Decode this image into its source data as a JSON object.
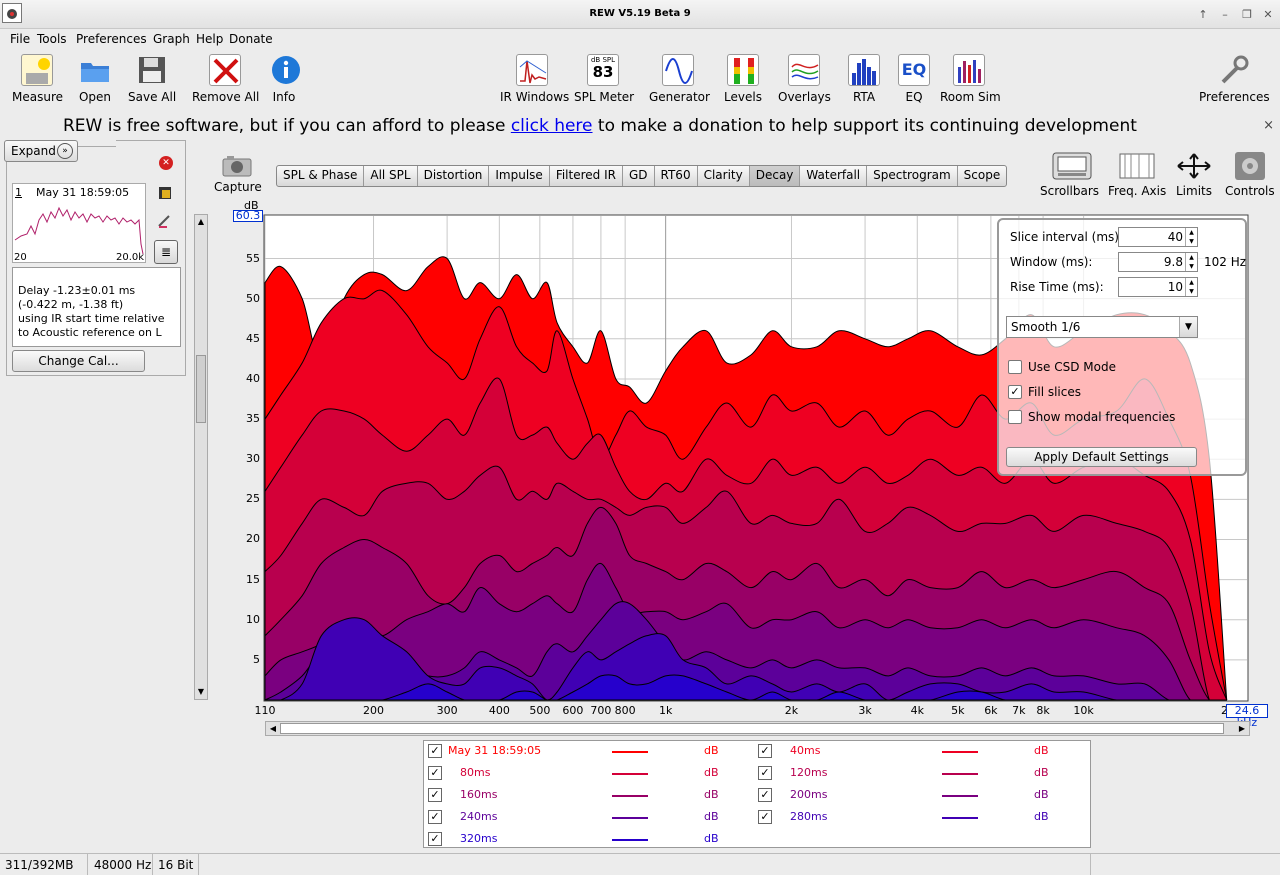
{
  "window": {
    "title": "REW V5.19 Beta 9",
    "controls": [
      "↑",
      "–",
      "❐",
      "✕"
    ]
  },
  "menu": [
    "File",
    "Tools",
    "Preferences",
    "Graph",
    "Help",
    "Donate"
  ],
  "toolbar": {
    "left": [
      {
        "label": "Measure",
        "icon": "measure-icon"
      },
      {
        "label": "Open",
        "icon": "folder-icon"
      },
      {
        "label": "Save All",
        "icon": "save-icon"
      },
      {
        "label": "Remove All",
        "icon": "remove-all-icon"
      },
      {
        "label": "Info",
        "icon": "info-icon"
      }
    ],
    "center": [
      {
        "label": "IR Windows",
        "icon": "ir-windows-icon"
      },
      {
        "label": "SPL Meter",
        "icon": "spl-meter-icon"
      },
      {
        "label": "Generator",
        "icon": "generator-icon"
      },
      {
        "label": "Levels",
        "icon": "levels-icon"
      },
      {
        "label": "Overlays",
        "icon": "overlays-icon"
      },
      {
        "label": "RTA",
        "icon": "rta-icon"
      },
      {
        "label": "EQ",
        "icon": "eq-icon"
      },
      {
        "label": "Room Sim",
        "icon": "room-sim-icon"
      }
    ],
    "spl_badge": {
      "unit": "dB SPL",
      "value": "83"
    },
    "eq_badge": "EQ",
    "right": {
      "label": "Preferences",
      "icon": "preferences-icon"
    }
  },
  "banner": {
    "before": "REW is free software, but if you can afford to please ",
    "link": "click here",
    "after": " to make a donation to help support its continuing development",
    "close": "×"
  },
  "left_panel": {
    "expand_label": "Expand",
    "expand_icon": "»",
    "measurement": {
      "number": "1",
      "date": "May 31 18:59:05",
      "freq_low": "20",
      "freq_high": "20.0k",
      "info_lines": [
        "Delay -1.23±0.01 ms",
        "(-0.422 m, -1.38 ft)",
        "using IR start time relative",
        "to Acoustic reference on  L"
      ]
    },
    "change_cal_label": "Change Cal..."
  },
  "capture_label": "Capture",
  "graph_tabs": [
    "SPL & Phase",
    "All SPL",
    "Distortion",
    "Impulse",
    "Filtered IR",
    "GD",
    "RT60",
    "Clarity",
    "Decay",
    "Waterfall",
    "Spectrogram",
    "Scope"
  ],
  "selected_tab": "Decay",
  "graph_tools": [
    {
      "label": "Scrollbars",
      "icon": "scrollbars-icon"
    },
    {
      "label": "Freq. Axis",
      "icon": "freq-axis-icon"
    },
    {
      "label": "Limits",
      "icon": "limits-icon"
    },
    {
      "label": "Controls",
      "icon": "controls-gear-icon"
    }
  ],
  "controls_panel": {
    "slice_interval_label": "Slice interval (ms):",
    "slice_interval_value": "40",
    "window_label": "Window (ms):",
    "window_value": "9.8",
    "window_hz": "102 Hz",
    "rise_time_label": "Rise Time (ms):",
    "rise_time_value": "10",
    "smoothing": "Smooth 1/6",
    "use_csd_label": "Use CSD Mode",
    "use_csd": false,
    "fill_slices_label": "Fill slices",
    "fill_slices": true,
    "show_modal_label": "Show modal frequencies",
    "show_modal": false,
    "apply_default_label": "Apply Default Settings"
  },
  "chart_data": {
    "type": "area",
    "ylabel": "dB",
    "ylim": [
      0,
      60.3
    ],
    "y_top_value": "60.3",
    "y_ticks": [
      5,
      10,
      15,
      20,
      25,
      30,
      35,
      40,
      45,
      50,
      55
    ],
    "xlim": [
      110,
      24600
    ],
    "x_scale": "log",
    "x_ticks": [
      {
        "value": 110,
        "label": "110"
      },
      {
        "value": 200,
        "label": "200"
      },
      {
        "value": 300,
        "label": "300"
      },
      {
        "value": 400,
        "label": "400"
      },
      {
        "value": 500,
        "label": "500"
      },
      {
        "value": 600,
        "label": "600"
      },
      {
        "value": 700,
        "label": "700"
      },
      {
        "value": 800,
        "label": "800"
      },
      {
        "value": 1000,
        "label": "1k"
      },
      {
        "value": 2000,
        "label": "2k"
      },
      {
        "value": 3000,
        "label": "3k"
      },
      {
        "value": 4000,
        "label": "4k"
      },
      {
        "value": 5000,
        "label": "5k"
      },
      {
        "value": 6000,
        "label": "6k"
      },
      {
        "value": 7000,
        "label": "7k"
      },
      {
        "value": 8000,
        "label": "8k"
      },
      {
        "value": 10000,
        "label": "10k"
      }
    ],
    "x_right_value": "24.6 kHz",
    "x_right_cut": "2",
    "freqs": [
      110,
      120,
      135,
      150,
      170,
      190,
      210,
      240,
      270,
      300,
      330,
      360,
      400,
      440,
      480,
      520,
      550,
      600,
      650,
      700,
      760,
      820,
      900,
      1000,
      1100,
      1250,
      1400,
      1600,
      1800,
      2000,
      2300,
      2600,
      3000,
      3400,
      3800,
      4300,
      5000,
      5700,
      6500,
      7500,
      8500,
      10000,
      12000,
      14000,
      16000,
      18000,
      20000,
      22000
    ],
    "series": [
      {
        "name": "May 31 18:59:05",
        "color": "#ff0000",
        "values": [
          52,
          54,
          50,
          42,
          50,
          53,
          53,
          51,
          54,
          55,
          50,
          52,
          50,
          53,
          50,
          52,
          47,
          44,
          42,
          46,
          40,
          39,
          37,
          41,
          44,
          46,
          42,
          43,
          46,
          44,
          44,
          46,
          45,
          44,
          45,
          46,
          44,
          43,
          45,
          48,
          44,
          46,
          48,
          48,
          46,
          42,
          30,
          0
        ]
      },
      {
        "name": "40ms",
        "color": "#ee0022",
        "values": [
          35,
          38,
          42,
          47,
          50,
          50,
          51,
          48,
          44,
          42,
          40,
          45,
          49,
          44,
          42,
          41,
          46,
          40,
          35,
          30,
          33,
          36,
          34,
          33,
          30,
          34,
          37,
          34,
          38,
          36,
          37,
          34,
          36,
          33,
          35,
          36,
          34,
          38,
          35,
          37,
          33,
          35,
          36,
          40,
          35,
          28,
          12,
          0
        ]
      },
      {
        "name": "80ms",
        "color": "#d40038",
        "values": [
          26,
          29,
          33,
          36,
          36,
          35,
          33,
          31,
          33,
          35,
          33,
          37,
          40,
          33,
          33,
          34,
          32,
          30,
          32,
          33,
          29,
          26,
          25,
          27,
          26,
          30,
          28,
          27,
          30,
          28,
          29,
          27,
          29,
          27,
          28,
          30,
          28,
          29,
          27,
          30,
          27,
          29,
          30,
          28,
          26,
          20,
          6,
          0
        ]
      },
      {
        "name": "120ms",
        "color": "#b8004e",
        "values": [
          16,
          18,
          22,
          25,
          24,
          23,
          26,
          27,
          27,
          25,
          26,
          28,
          29,
          25,
          26,
          25,
          27,
          26,
          25,
          25,
          24,
          23,
          24,
          24,
          22,
          24,
          26,
          22,
          23,
          22,
          22,
          25,
          21,
          22,
          24,
          23,
          21,
          22,
          22,
          23,
          21,
          23,
          22,
          21,
          19,
          12,
          0,
          0
        ]
      },
      {
        "name": "160ms",
        "color": "#980066",
        "values": [
          8,
          10,
          13,
          17,
          19,
          20,
          19,
          17,
          13,
          12,
          14,
          17,
          18,
          16,
          17,
          18,
          19,
          18,
          22,
          24,
          22,
          18,
          17,
          16,
          15,
          17,
          16,
          14,
          16,
          15,
          17,
          14,
          15,
          13,
          15,
          14,
          14,
          16,
          14,
          15,
          14,
          15,
          16,
          14,
          12,
          5,
          0,
          0
        ]
      },
      {
        "name": "200ms",
        "color": "#7a0080",
        "values": [
          3,
          5,
          6,
          7,
          9,
          9,
          8,
          10,
          11,
          12,
          11,
          14,
          12,
          11,
          12,
          13,
          12,
          11,
          15,
          17,
          14,
          11,
          11,
          11,
          10,
          11,
          12,
          9,
          10,
          10,
          11,
          9,
          10,
          9,
          10,
          9,
          9,
          10,
          9,
          10,
          9,
          10,
          9,
          8,
          5,
          0,
          0,
          0
        ]
      },
      {
        "name": "240ms",
        "color": "#5c009a",
        "values": [
          0,
          1,
          3,
          6,
          7,
          8,
          6,
          4,
          3,
          3,
          4,
          6,
          5,
          4,
          3,
          6,
          7,
          6,
          8,
          10,
          12,
          12,
          10,
          7,
          5,
          6,
          5,
          4,
          5,
          4,
          5,
          4,
          4,
          3,
          4,
          3,
          3,
          4,
          3,
          4,
          3,
          3,
          2,
          2,
          0,
          0,
          0,
          0
        ]
      },
      {
        "name": "280ms",
        "color": "#4000b4",
        "values": [
          0,
          0,
          2,
          8,
          10,
          10,
          8,
          6,
          3,
          2,
          2,
          4,
          4,
          3,
          2,
          0,
          1,
          4,
          6,
          5,
          6,
          7,
          8,
          8,
          5,
          4,
          2,
          3,
          2,
          1,
          2,
          1,
          2,
          0,
          1,
          2,
          2,
          1,
          1,
          2,
          1,
          1,
          0,
          0,
          0,
          0,
          0,
          0
        ]
      },
      {
        "name": "320ms",
        "color": "#2600cc",
        "values": [
          0,
          0,
          0,
          0,
          0,
          0,
          0,
          1,
          2,
          1,
          0,
          0,
          0,
          1,
          1,
          0,
          0,
          1,
          2,
          3,
          3,
          2,
          2,
          3,
          3,
          2,
          1,
          0,
          1,
          0,
          0,
          1,
          0,
          0,
          0,
          0,
          1,
          1,
          0,
          0,
          0,
          0,
          0,
          0,
          0,
          0,
          0,
          0
        ]
      }
    ]
  },
  "legend": [
    {
      "name": "May 31 18:59:05",
      "color": "#ff0000",
      "unit": "dB"
    },
    {
      "name": "40ms",
      "color": "#ee0022",
      "unit": "dB"
    },
    {
      "name": "80ms",
      "color": "#d40038",
      "unit": "dB"
    },
    {
      "name": "120ms",
      "color": "#b8004e",
      "unit": "dB"
    },
    {
      "name": "160ms",
      "color": "#980066",
      "unit": "dB"
    },
    {
      "name": "200ms",
      "color": "#7a0080",
      "unit": "dB"
    },
    {
      "name": "240ms",
      "color": "#5c009a",
      "unit": "dB"
    },
    {
      "name": "280ms",
      "color": "#4000b4",
      "unit": "dB"
    },
    {
      "name": "320ms",
      "color": "#2600cc",
      "unit": "dB"
    }
  ],
  "status": {
    "memory": "311/392MB",
    "sample_rate": "48000 Hz",
    "bits": "16 Bit"
  }
}
